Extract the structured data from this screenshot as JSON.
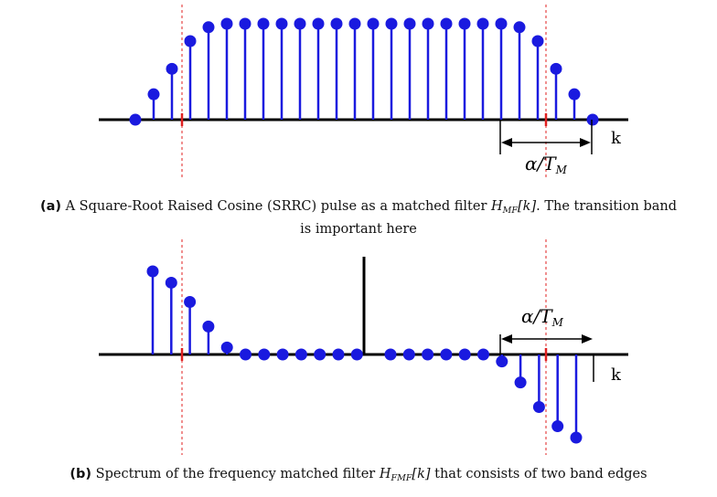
{
  "panel_a": {
    "axis_label": "k",
    "bandwidth_label": {
      "alpha": "α",
      "slash": "/",
      "T": "T",
      "sub": "M"
    },
    "stem_values": [
      0.0,
      0.22,
      0.44,
      0.68,
      0.8,
      0.83,
      0.83,
      0.83,
      0.83,
      0.83,
      0.83,
      0.83,
      0.83,
      0.83,
      0.83,
      0.83,
      0.83,
      0.83,
      0.83,
      0.83,
      0.83,
      0.8,
      0.68,
      0.44,
      0.22,
      0.0
    ],
    "caption": {
      "tag": "(a)",
      "text_before": "A Square-Root Raised Cosine (SRRC) pulse as a matched filter ",
      "math_main": "H",
      "math_sub": "MF",
      "math_arg": "[k]",
      "text_line1_end": ". The transition band",
      "text_line2": "is important here"
    }
  },
  "panel_b": {
    "axis_label": "k",
    "bandwidth_label": {
      "alpha": "α",
      "slash": "/",
      "T": "T",
      "sub": "M"
    },
    "left_stems": [
      0.95,
      0.82,
      0.6,
      0.32,
      0.08,
      0.0,
      0.0,
      0.0,
      0.0,
      0.0,
      0.0,
      0.0
    ],
    "right_stems": [
      0.0,
      0.0,
      0.0,
      0.0,
      0.0,
      0.0,
      -0.08,
      -0.32,
      -0.6,
      -0.82,
      -0.95
    ],
    "caption": {
      "tag": "(b)",
      "text_before": "Spectrum of the frequency matched filter ",
      "math_main": "H",
      "math_sub": "FMF",
      "math_arg": "[k]",
      "text_after": " that consists of two band edges"
    }
  },
  "colors": {
    "stem": "#1a1adf",
    "axis": "#000000",
    "marker_line": "#e02020"
  }
}
